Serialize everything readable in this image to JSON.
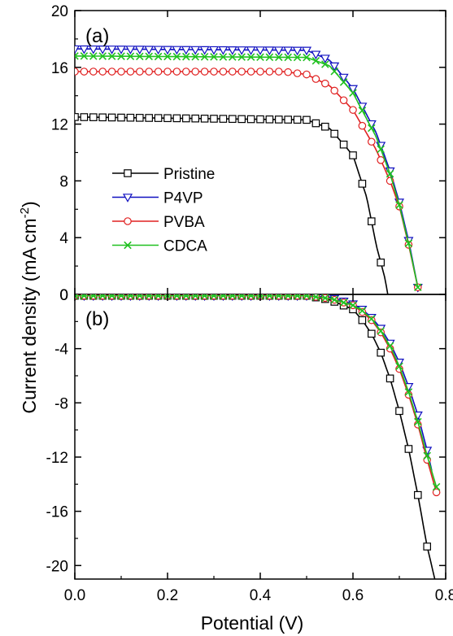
{
  "chart_data": {
    "type": "line",
    "xlabel": "Potential (V)",
    "ylabel_main": "Current density (mA cm",
    "ylabel_sup": "-2",
    "ylabel_close": ")",
    "xlim": [
      0.0,
      0.8
    ],
    "x_ticks": [
      "0.0",
      "0.2",
      "0.4",
      "0.6",
      "0.8"
    ],
    "panels": [
      {
        "label": "(a)",
        "ylim": [
          0,
          20
        ],
        "y_ticks": [
          "20",
          "16",
          "12",
          "8",
          "4",
          "0"
        ],
        "legend_position": "lower-left",
        "series": [
          {
            "name": "Pristine",
            "color": "#000000",
            "marker": "square",
            "x": [
              0.0,
              0.5,
              0.55,
              0.6,
              0.63,
              0.65,
              0.67,
              0.675
            ],
            "y": [
              12.5,
              12.3,
              11.7,
              9.8,
              6.8,
              3.5,
              1.0,
              0.0
            ]
          },
          {
            "name": "P4VP",
            "color": "#1010c0",
            "marker": "triangle-down",
            "x": [
              0.0,
              0.5,
              0.55,
              0.6,
              0.65,
              0.68,
              0.7,
              0.72,
              0.74
            ],
            "y": [
              17.3,
              17.2,
              16.5,
              14.5,
              11.4,
              8.7,
              6.5,
              3.8,
              0.5
            ]
          },
          {
            "name": "PVBA",
            "color": "#e02020",
            "marker": "circle",
            "x": [
              0.0,
              0.45,
              0.5,
              0.55,
              0.6,
              0.65,
              0.68,
              0.7,
              0.72,
              0.74
            ],
            "y": [
              15.7,
              15.7,
              15.5,
              14.7,
              13.0,
              10.2,
              8.0,
              6.2,
              3.5,
              0.5
            ]
          },
          {
            "name": "CDCA",
            "color": "#20c020",
            "marker": "x",
            "x": [
              0.0,
              0.5,
              0.55,
              0.6,
              0.65,
              0.68,
              0.7,
              0.72,
              0.74
            ],
            "y": [
              16.8,
              16.7,
              16.1,
              14.2,
              11.1,
              8.5,
              6.3,
              3.6,
              0.5
            ]
          }
        ]
      },
      {
        "label": "(b)",
        "ylim": [
          -21,
          0
        ],
        "y_ticks": [
          "0",
          "-4",
          "-8",
          "-12",
          "-16",
          "-20"
        ],
        "series": [
          {
            "name": "Pristine",
            "color": "#000000",
            "marker": "square",
            "x": [
              0.0,
              0.5,
              0.55,
              0.6,
              0.62,
              0.64,
              0.66,
              0.68,
              0.7,
              0.72,
              0.74,
              0.76,
              0.78,
              0.79
            ],
            "y": [
              -0.1,
              -0.1,
              -0.4,
              -1.1,
              -1.9,
              -2.9,
              -4.3,
              -6.2,
              -8.6,
              -11.4,
              -14.8,
              -18.6,
              -21.5,
              -22.5
            ]
          },
          {
            "name": "P4VP",
            "color": "#1010c0",
            "marker": "triangle-down",
            "x": [
              0.0,
              0.5,
              0.55,
              0.6,
              0.62,
              0.64,
              0.66,
              0.68,
              0.7,
              0.72,
              0.74,
              0.76,
              0.77
            ],
            "y": [
              -0.1,
              -0.1,
              -0.2,
              -0.7,
              -1.1,
              -1.7,
              -2.5,
              -3.6,
              -5.0,
              -6.8,
              -8.9,
              -11.5,
              -13.0
            ]
          },
          {
            "name": "PVBA",
            "color": "#e02020",
            "marker": "circle",
            "x": [
              0.0,
              0.5,
              0.55,
              0.6,
              0.62,
              0.64,
              0.66,
              0.68,
              0.7,
              0.72,
              0.74,
              0.76,
              0.78
            ],
            "y": [
              -0.1,
              -0.1,
              -0.3,
              -0.8,
              -1.3,
              -1.9,
              -2.8,
              -4.0,
              -5.5,
              -7.4,
              -9.6,
              -12.2,
              -14.6
            ]
          },
          {
            "name": "CDCA",
            "color": "#20c020",
            "marker": "x",
            "x": [
              0.0,
              0.5,
              0.55,
              0.6,
              0.62,
              0.64,
              0.66,
              0.68,
              0.7,
              0.72,
              0.74,
              0.76,
              0.78
            ],
            "y": [
              -0.1,
              -0.1,
              -0.3,
              -0.8,
              -1.2,
              -1.8,
              -2.7,
              -3.8,
              -5.3,
              -7.2,
              -9.4,
              -11.9,
              -14.2
            ]
          }
        ]
      }
    ]
  }
}
